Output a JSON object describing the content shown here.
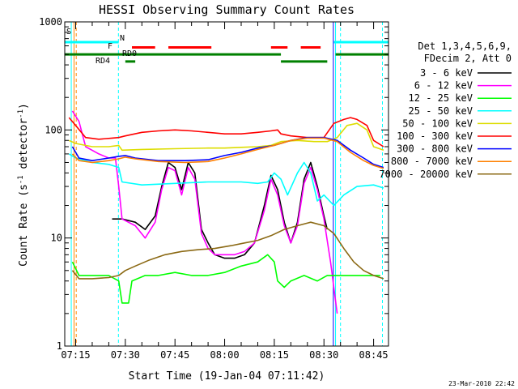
{
  "chart_data": {
    "type": "line",
    "title": "HESSI Observing Summary Count Rates",
    "xlabel": "Start Time (19-Jan-04 07:11:42)",
    "ylabel": "Count Rate (s",
    "ylabel_exp1": "-1",
    "ylabel_mid": " detector",
    "ylabel_exp2": "-1",
    "ylabel_end": ")",
    "yscale": "log",
    "ylim": [
      1,
      1000
    ],
    "xlim": [
      "07:11:42",
      "08:49:30"
    ],
    "x_ticks": [
      "07:15",
      "07:30",
      "07:45",
      "08:00",
      "08:15",
      "08:30",
      "08:45"
    ],
    "y_ticks": [
      "1",
      "10",
      "100",
      "1000"
    ],
    "legend_header": [
      "Det 1,3,4,5,6,9,",
      "FDecim 2, Att 0"
    ],
    "legend_position": "right",
    "timestamp": "23-Mar-2010 22:42",
    "flags": [
      {
        "label": "S",
        "color": "#ff8800",
        "y": 700,
        "segments": []
      },
      {
        "label": "N",
        "color": "#00ffff",
        "y": 650,
        "segments": [
          [
            "07:11:42",
            "07:28:00"
          ],
          [
            "08:33:00",
            "08:49:30"
          ]
        ]
      },
      {
        "label": "F",
        "color": "#ff0000",
        "y": 580,
        "segments": [
          [
            "07:32:00",
            "07:39:00"
          ],
          [
            "07:43:00",
            "07:56:00"
          ],
          [
            "08:14:00",
            "08:19:00"
          ],
          [
            "08:23:00",
            "08:29:00"
          ]
        ]
      },
      {
        "label": "RD0",
        "color": "#008000",
        "y": 500,
        "segments": [
          [
            "07:11:42",
            "08:17:00"
          ],
          [
            "08:33:30",
            "08:49:30"
          ]
        ]
      },
      {
        "label": "RD4",
        "color": "#008000",
        "y": 430,
        "segments": [
          [
            "07:30:00",
            "07:33:00"
          ],
          [
            "08:17:00",
            "08:31:00"
          ]
        ]
      }
    ],
    "series": [
      {
        "name": "3 - 6 keV",
        "color": "#000000",
        "points": [
          [
            "07:26",
            15
          ],
          [
            "07:29",
            15
          ],
          [
            "07:33",
            14
          ],
          [
            "07:36",
            12
          ],
          [
            "07:39",
            16
          ],
          [
            "07:41",
            30
          ],
          [
            "07:43",
            50
          ],
          [
            "07:45",
            45
          ],
          [
            "07:47",
            28
          ],
          [
            "07:49",
            50
          ],
          [
            "07:51",
            40
          ],
          [
            "07:53",
            12
          ],
          [
            "07:55",
            9
          ],
          [
            "07:57",
            7
          ],
          [
            "08:00",
            6.5
          ],
          [
            "08:03",
            6.5
          ],
          [
            "08:06",
            7
          ],
          [
            "08:09",
            9
          ],
          [
            "08:12",
            20
          ],
          [
            "08:14",
            38
          ],
          [
            "08:16",
            28
          ],
          [
            "08:18",
            14
          ],
          [
            "08:20",
            9
          ],
          [
            "08:22",
            14
          ],
          [
            "08:24",
            35
          ],
          [
            "08:26",
            50
          ],
          [
            "08:28",
            30
          ],
          [
            "08:30",
            16
          ],
          [
            "08:31",
            12
          ]
        ]
      },
      {
        "name": "6 - 12 keV",
        "color": "#ff00ff",
        "points": [
          [
            "07:14",
            150
          ],
          [
            "07:16",
            120
          ],
          [
            "07:18",
            70
          ],
          [
            "07:22",
            60
          ],
          [
            "07:25",
            55
          ],
          [
            "07:27",
            55
          ],
          [
            "07:28",
            30
          ],
          [
            "07:29",
            15
          ],
          [
            "07:33",
            13
          ],
          [
            "07:36",
            10
          ],
          [
            "07:39",
            14
          ],
          [
            "07:41",
            28
          ],
          [
            "07:43",
            45
          ],
          [
            "07:45",
            42
          ],
          [
            "07:47",
            25
          ],
          [
            "07:49",
            45
          ],
          [
            "07:51",
            35
          ],
          [
            "07:53",
            11
          ],
          [
            "07:55",
            8
          ],
          [
            "07:57",
            7
          ],
          [
            "08:00",
            7
          ],
          [
            "08:03",
            7
          ],
          [
            "08:06",
            7.5
          ],
          [
            "08:09",
            9
          ],
          [
            "08:12",
            18
          ],
          [
            "08:14",
            35
          ],
          [
            "08:16",
            25
          ],
          [
            "08:18",
            13
          ],
          [
            "08:20",
            9
          ],
          [
            "08:22",
            13
          ],
          [
            "08:24",
            32
          ],
          [
            "08:26",
            45
          ],
          [
            "08:28",
            28
          ],
          [
            "08:30",
            15
          ],
          [
            "08:32",
            6
          ],
          [
            "08:34",
            2
          ]
        ]
      },
      {
        "name": "12 - 25 keV",
        "color": "#00ff00",
        "points": [
          [
            "07:14",
            6
          ],
          [
            "07:16",
            4.5
          ],
          [
            "07:20",
            4.5
          ],
          [
            "07:25",
            4.5
          ],
          [
            "07:28",
            4
          ],
          [
            "07:29",
            2.5
          ],
          [
            "07:31",
            2.5
          ],
          [
            "07:32",
            4
          ],
          [
            "07:36",
            4.5
          ],
          [
            "07:40",
            4.5
          ],
          [
            "07:45",
            4.8
          ],
          [
            "07:50",
            4.5
          ],
          [
            "07:55",
            4.5
          ],
          [
            "08:00",
            4.8
          ],
          [
            "08:05",
            5.5
          ],
          [
            "08:10",
            6
          ],
          [
            "08:13",
            7
          ],
          [
            "08:15",
            6
          ],
          [
            "08:16",
            4
          ],
          [
            "08:18",
            3.5
          ],
          [
            "08:20",
            4
          ],
          [
            "08:24",
            4.5
          ],
          [
            "08:28",
            4
          ],
          [
            "08:31",
            4.5
          ],
          [
            "08:34",
            4.5
          ],
          [
            "08:40",
            4.5
          ],
          [
            "08:47",
            4.5
          ]
        ]
      },
      {
        "name": "25 - 50 keV",
        "color": "#00ffff",
        "points": [
          [
            "07:13",
            60
          ],
          [
            "07:15",
            55
          ],
          [
            "07:20",
            50
          ],
          [
            "07:25",
            48
          ],
          [
            "07:28",
            45
          ],
          [
            "07:29",
            33
          ],
          [
            "07:35",
            31
          ],
          [
            "07:45",
            32
          ],
          [
            "07:55",
            33
          ],
          [
            "08:00",
            33
          ],
          [
            "08:05",
            33
          ],
          [
            "08:10",
            32
          ],
          [
            "08:13",
            33
          ],
          [
            "08:15",
            40
          ],
          [
            "08:17",
            35
          ],
          [
            "08:19",
            25
          ],
          [
            "08:22",
            40
          ],
          [
            "08:24",
            50
          ],
          [
            "08:26",
            40
          ],
          [
            "08:28",
            22
          ],
          [
            "08:30",
            25
          ],
          [
            "08:33",
            20
          ],
          [
            "08:36",
            25
          ],
          [
            "08:40",
            30
          ],
          [
            "08:45",
            31
          ],
          [
            "08:48",
            29
          ]
        ]
      },
      {
        "name": "50 - 100 keV",
        "color": "#dddd00",
        "points": [
          [
            "07:13",
            80
          ],
          [
            "07:15",
            75
          ],
          [
            "07:20",
            70
          ],
          [
            "07:25",
            70
          ],
          [
            "07:28",
            72
          ],
          [
            "07:29",
            65
          ],
          [
            "07:35",
            66
          ],
          [
            "07:45",
            67
          ],
          [
            "07:55",
            68
          ],
          [
            "08:00",
            68
          ],
          [
            "08:05",
            69
          ],
          [
            "08:10",
            70
          ],
          [
            "08:14",
            72
          ],
          [
            "08:17",
            78
          ],
          [
            "08:22",
            80
          ],
          [
            "08:27",
            78
          ],
          [
            "08:31",
            78
          ],
          [
            "08:34",
            85
          ],
          [
            "08:37",
            110
          ],
          [
            "08:40",
            115
          ],
          [
            "08:43",
            100
          ],
          [
            "08:45",
            70
          ],
          [
            "08:48",
            65
          ]
        ]
      },
      {
        "name": "100 - 300 keV",
        "color": "#ff0000",
        "points": [
          [
            "07:13",
            130
          ],
          [
            "07:15",
            110
          ],
          [
            "07:18",
            85
          ],
          [
            "07:22",
            82
          ],
          [
            "07:26",
            84
          ],
          [
            "07:28",
            85
          ],
          [
            "07:30",
            88
          ],
          [
            "07:35",
            95
          ],
          [
            "07:40",
            98
          ],
          [
            "07:45",
            100
          ],
          [
            "07:50",
            98
          ],
          [
            "07:55",
            95
          ],
          [
            "08:00",
            92
          ],
          [
            "08:05",
            92
          ],
          [
            "08:10",
            95
          ],
          [
            "08:14",
            98
          ],
          [
            "08:16",
            100
          ],
          [
            "08:17",
            92
          ],
          [
            "08:20",
            88
          ],
          [
            "08:25",
            85
          ],
          [
            "08:30",
            85
          ],
          [
            "08:33",
            115
          ],
          [
            "08:36",
            125
          ],
          [
            "08:38",
            130
          ],
          [
            "08:40",
            125
          ],
          [
            "08:43",
            110
          ],
          [
            "08:45",
            80
          ],
          [
            "08:48",
            70
          ]
        ]
      },
      {
        "name": "300 - 800 keV",
        "color": "#0000ff",
        "points": [
          [
            "07:14",
            70
          ],
          [
            "07:16",
            55
          ],
          [
            "07:20",
            52
          ],
          [
            "07:25",
            55
          ],
          [
            "07:28",
            57
          ],
          [
            "07:30",
            58
          ],
          [
            "07:33",
            55
          ],
          [
            "07:40",
            52
          ],
          [
            "07:48",
            52
          ],
          [
            "07:55",
            53
          ],
          [
            "08:00",
            58
          ],
          [
            "08:05",
            62
          ],
          [
            "08:10",
            68
          ],
          [
            "08:15",
            72
          ],
          [
            "08:20",
            80
          ],
          [
            "08:25",
            85
          ],
          [
            "08:30",
            85
          ],
          [
            "08:34",
            80
          ],
          [
            "08:38",
            65
          ],
          [
            "08:42",
            55
          ],
          [
            "08:45",
            48
          ],
          [
            "08:48",
            45
          ]
        ]
      },
      {
        "name": "800 - 7000 keV",
        "color": "#ff8000",
        "points": [
          [
            "07:14",
            60
          ],
          [
            "07:16",
            52
          ],
          [
            "07:20",
            50
          ],
          [
            "07:25",
            52
          ],
          [
            "07:28",
            54
          ],
          [
            "07:30",
            56
          ],
          [
            "07:33",
            54
          ],
          [
            "07:40",
            51
          ],
          [
            "07:48",
            50
          ],
          [
            "07:55",
            51
          ],
          [
            "08:00",
            55
          ],
          [
            "08:05",
            60
          ],
          [
            "08:10",
            66
          ],
          [
            "08:15",
            72
          ],
          [
            "08:20",
            80
          ],
          [
            "08:25",
            84
          ],
          [
            "08:30",
            84
          ],
          [
            "08:34",
            78
          ],
          [
            "08:38",
            62
          ],
          [
            "08:42",
            52
          ],
          [
            "08:45",
            47
          ],
          [
            "08:48",
            44
          ]
        ]
      },
      {
        "name": "7000 - 20000 keV",
        "color": "#8b6914",
        "points": [
          [
            "07:14",
            5
          ],
          [
            "07:16",
            4.2
          ],
          [
            "07:20",
            4.2
          ],
          [
            "07:25",
            4.3
          ],
          [
            "07:28",
            4.5
          ],
          [
            "07:30",
            5
          ],
          [
            "07:33",
            5.5
          ],
          [
            "07:37",
            6.2
          ],
          [
            "07:42",
            7
          ],
          [
            "07:47",
            7.5
          ],
          [
            "07:52",
            7.8
          ],
          [
            "07:57",
            8
          ],
          [
            "08:02",
            8.5
          ],
          [
            "08:06",
            9
          ],
          [
            "08:10",
            9.5
          ],
          [
            "08:14",
            10.5
          ],
          [
            "08:18",
            12
          ],
          [
            "08:22",
            13
          ],
          [
            "08:26",
            14
          ],
          [
            "08:30",
            13
          ],
          [
            "08:33",
            11
          ],
          [
            "08:36",
            8
          ],
          [
            "08:39",
            6
          ],
          [
            "08:42",
            5
          ],
          [
            "08:45",
            4.5
          ],
          [
            "08:48",
            4.2
          ]
        ]
      }
    ],
    "vlines": [
      {
        "t": "07:13:40",
        "color": "#00ffff",
        "style": "solid"
      },
      {
        "t": "07:14:30",
        "color": "#ff8800",
        "style": "solid"
      },
      {
        "t": "07:15:10",
        "color": "#ff8800",
        "style": "dashed"
      },
      {
        "t": "07:27:55",
        "color": "#00ffff",
        "style": "dashed"
      },
      {
        "t": "08:32:50",
        "color": "#0000ff",
        "style": "solid"
      },
      {
        "t": "08:33:30",
        "color": "#00ffff",
        "style": "solid"
      },
      {
        "t": "08:35:00",
        "color": "#00ffff",
        "style": "dashed"
      },
      {
        "t": "08:47:40",
        "color": "#00ffff",
        "style": "dashed"
      }
    ]
  }
}
